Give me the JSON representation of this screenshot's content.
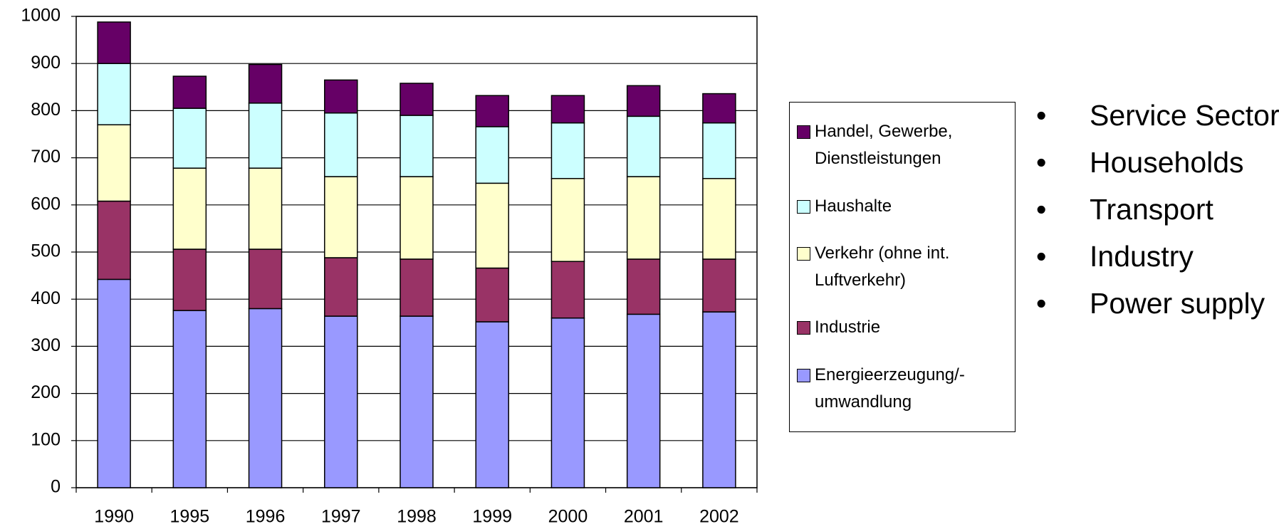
{
  "chart_data": {
    "type": "stacked_bar",
    "categories": [
      "1990",
      "1995",
      "1996",
      "1997",
      "1998",
      "1999",
      "2000",
      "2001",
      "2002"
    ],
    "series": [
      {
        "name": "Energieerzeugung/-umwandlung",
        "color": "#9999ff",
        "values": [
          442,
          376,
          380,
          364,
          364,
          352,
          360,
          368,
          373
        ]
      },
      {
        "name": "Industrie",
        "color": "#993366",
        "values": [
          166,
          130,
          126,
          124,
          121,
          114,
          120,
          117,
          112
        ]
      },
      {
        "name": "Verkehr (ohne int. Luftverkehr)",
        "color": "#ffffcc",
        "values": [
          162,
          172,
          172,
          172,
          175,
          180,
          176,
          175,
          171
        ]
      },
      {
        "name": "Haushalte",
        "color": "#ccffff",
        "values": [
          130,
          127,
          138,
          135,
          130,
          120,
          118,
          128,
          118
        ]
      },
      {
        "name": "Handel, Gewerbe, Dienstleistungen",
        "color": "#660066",
        "values": [
          88,
          68,
          82,
          70,
          68,
          66,
          58,
          65,
          62
        ]
      }
    ],
    "ylim": [
      0,
      1000
    ],
    "yticks": [
      0,
      100,
      200,
      300,
      400,
      500,
      600,
      700,
      800,
      900,
      1000
    ],
    "grid": true
  },
  "bullets": [
    "Service Sector",
    "Households",
    "Transport",
    "Industry",
    "Power supply"
  ]
}
